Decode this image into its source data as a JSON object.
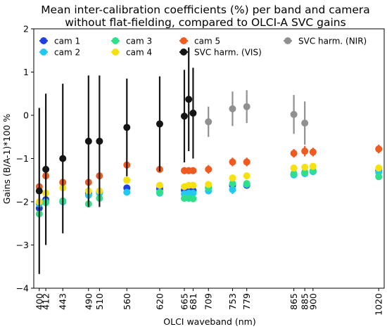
{
  "chart_data": {
    "type": "scatter",
    "title": [
      "Mean inter-calibration coefficients (%) per band and camera",
      "without flat-fielding, compared to OLCI-A SVC gains"
    ],
    "xlabel": "OLCI waveband (nm)",
    "ylabel": "Gains (B/A-1)*100 %",
    "ylim": [
      -4,
      2
    ],
    "xlim": [
      390,
      1030
    ],
    "yticks": [
      -4,
      -3,
      -2,
      -1,
      0,
      1,
      2
    ],
    "xticks": [
      400,
      412,
      443,
      490,
      510,
      560,
      620,
      665,
      681,
      709,
      753,
      779,
      865,
      885,
      900,
      1020
    ],
    "grid": false,
    "legend_placement": "top",
    "series": [
      {
        "name": "cam 1",
        "color": "#1f3fe0",
        "x": [
          400,
          412,
          443,
          490,
          510,
          560,
          620,
          665,
          673,
          681,
          709,
          753,
          779,
          865,
          885,
          900,
          1020
        ],
        "y": [
          -2.15,
          -1.95,
          -2.0,
          -1.8,
          -1.78,
          -1.68,
          -1.7,
          -1.73,
          -1.74,
          -1.74,
          -1.67,
          -1.62,
          -1.62,
          -1.37,
          -1.32,
          -1.3,
          -1.28
        ],
        "err": [
          0.05,
          0.05,
          0.05,
          0.05,
          0.05,
          0.05,
          0.05,
          0.05,
          0.05,
          0.05,
          0.05,
          0.05,
          0.05,
          0.05,
          0.05,
          0.05,
          0.05
        ]
      },
      {
        "name": "cam 2",
        "color": "#22c8f0",
        "x": [
          400,
          412,
          443,
          490,
          510,
          560,
          620,
          665,
          673,
          681,
          709,
          753,
          779,
          865,
          885,
          900,
          1020
        ],
        "y": [
          -2.05,
          -2.0,
          -2.0,
          -1.85,
          -1.8,
          -1.78,
          -1.8,
          -1.82,
          -1.8,
          -1.8,
          -1.75,
          -1.72,
          -1.6,
          -1.38,
          -1.35,
          -1.3,
          -1.32
        ],
        "err": [
          0.05,
          0.05,
          0.05,
          0.05,
          0.05,
          0.05,
          0.05,
          0.05,
          0.05,
          0.05,
          0.05,
          0.1,
          0.05,
          0.05,
          0.05,
          0.05,
          0.05
        ]
      },
      {
        "name": "cam 3",
        "color": "#2ee08a",
        "x": [
          400,
          412,
          443,
          490,
          510,
          560,
          620,
          665,
          673,
          681,
          709,
          753,
          779,
          865,
          885,
          900,
          1020
        ],
        "y": [
          -2.28,
          -2.02,
          -1.98,
          -2.05,
          -1.92,
          -1.5,
          -1.78,
          -1.92,
          -1.92,
          -1.93,
          -1.68,
          -1.58,
          -1.58,
          -1.35,
          -1.32,
          -1.28,
          -1.42
        ],
        "err": [
          0.05,
          0.05,
          0.05,
          0.08,
          0.05,
          0.05,
          0.05,
          0.05,
          0.05,
          0.05,
          0.05,
          0.05,
          0.05,
          0.05,
          0.05,
          0.05,
          0.05
        ]
      },
      {
        "name": "cam 4",
        "color": "#f5e10f",
        "x": [
          400,
          412,
          443,
          490,
          510,
          560,
          620,
          665,
          673,
          681,
          709,
          753,
          779,
          865,
          885,
          900,
          1020
        ],
        "y": [
          -2.0,
          -1.8,
          -1.68,
          -1.75,
          -1.75,
          -1.5,
          -1.62,
          -1.65,
          -1.62,
          -1.62,
          -1.6,
          -1.45,
          -1.4,
          -1.22,
          -1.2,
          -1.18,
          -1.22
        ],
        "err": [
          0.05,
          0.05,
          0.05,
          0.05,
          0.05,
          0.05,
          0.05,
          0.05,
          0.05,
          0.05,
          0.05,
          0.05,
          0.05,
          0.05,
          0.05,
          0.05,
          0.05
        ]
      },
      {
        "name": "cam 5",
        "color": "#f05a1e",
        "x": [
          400,
          412,
          443,
          490,
          510,
          560,
          620,
          665,
          673,
          681,
          709,
          753,
          779,
          865,
          885,
          900,
          1020
        ],
        "y": [
          -1.65,
          -1.4,
          -1.55,
          -1.55,
          -1.4,
          -1.15,
          -1.25,
          -1.28,
          -1.28,
          -1.28,
          -1.25,
          -1.08,
          -1.08,
          -0.88,
          -0.83,
          -0.85,
          -0.78
        ],
        "err": [
          0.08,
          0.08,
          0.08,
          0.08,
          0.08,
          0.08,
          0.08,
          0.08,
          0.08,
          0.08,
          0.1,
          0.1,
          0.1,
          0.1,
          0.12,
          0.1,
          0.1
        ]
      },
      {
        "name": "SVC harm. (VIS)",
        "color": "#151515",
        "x": [
          400,
          412,
          443,
          490,
          510,
          560,
          620,
          665,
          673,
          681
        ],
        "y": [
          -1.75,
          -1.25,
          -1.0,
          -0.6,
          -0.6,
          -0.28,
          -0.2,
          -0.02,
          0.37,
          0.05
        ],
        "err": [
          1.92,
          1.75,
          1.73,
          1.52,
          1.52,
          1.13,
          1.1,
          1.07,
          1.2,
          1.05
        ]
      },
      {
        "name": "SVC harm. (NIR)",
        "color": "#909090",
        "x": [
          709,
          753,
          779,
          865,
          885
        ],
        "y": [
          -0.15,
          0.15,
          0.2,
          0.02,
          -0.18
        ],
        "err": [
          0.35,
          0.4,
          0.38,
          0.45,
          0.5
        ]
      }
    ]
  }
}
